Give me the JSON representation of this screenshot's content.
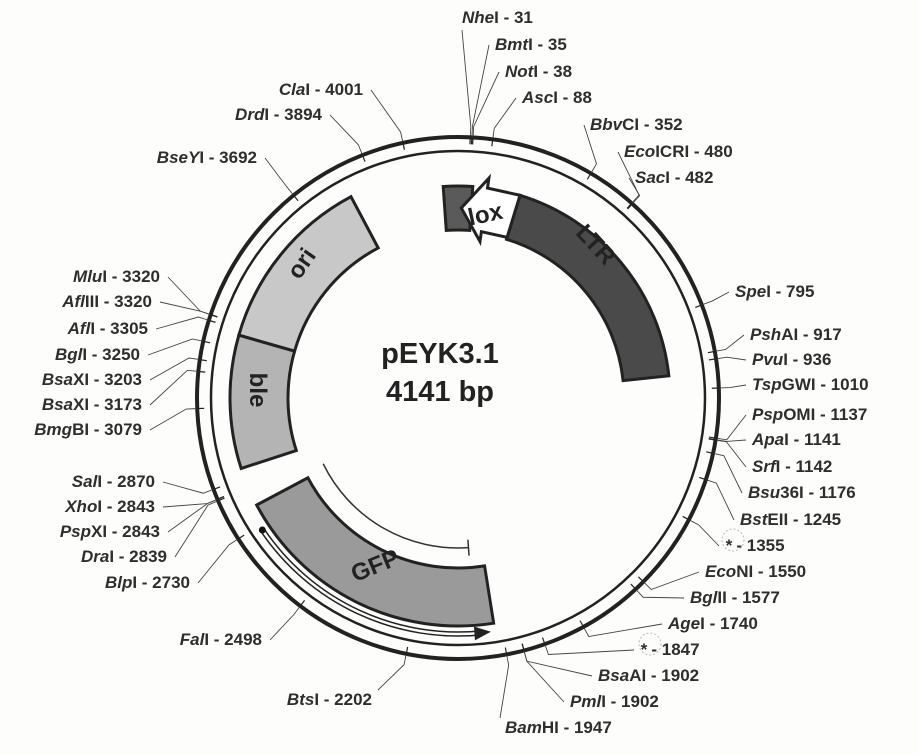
{
  "plasmid": {
    "name": "pEYK3.1",
    "size": "4141 bp"
  },
  "features": [
    {
      "label": "lox",
      "color": "#5a5a5a"
    },
    {
      "label": "LTR",
      "color": "#4a4a4a"
    },
    {
      "label": "ori",
      "color": "#c8c8c8"
    },
    {
      "label": "ble",
      "color": "#b4b4b4"
    },
    {
      "label": "GFP",
      "color": "#9a9a9a"
    }
  ],
  "sites": [
    {
      "prefix": "Nhe",
      "suffix": "I",
      "pos": "31"
    },
    {
      "prefix": "Bmt",
      "suffix": "I",
      "pos": "35"
    },
    {
      "prefix": "Not",
      "suffix": "I",
      "pos": "38"
    },
    {
      "prefix": "Asc",
      "suffix": "I",
      "pos": "88"
    },
    {
      "prefix": "Bbv",
      "suffix": "CI",
      "pos": "352"
    },
    {
      "prefix": "Eco",
      "suffix": "ICRI",
      "pos": "480"
    },
    {
      "prefix": "Sac",
      "suffix": "I",
      "pos": "482"
    },
    {
      "prefix": "Spe",
      "suffix": "I",
      "pos": "795"
    },
    {
      "prefix": "Psh",
      "suffix": "AI",
      "pos": "917"
    },
    {
      "prefix": "Pvu",
      "suffix": "I",
      "pos": "936"
    },
    {
      "prefix": "Tsp",
      "suffix": "GWI",
      "pos": "1010"
    },
    {
      "prefix": "Psp",
      "suffix": "OMI",
      "pos": "1137"
    },
    {
      "prefix": "Apa",
      "suffix": "I",
      "pos": "1141"
    },
    {
      "prefix": "Srf",
      "suffix": "I",
      "pos": "1142"
    },
    {
      "prefix": "Bsu",
      "suffix": "36I",
      "pos": "1176"
    },
    {
      "prefix": "Bst",
      "suffix": "EII",
      "pos": "1245"
    },
    {
      "prefix": "*",
      "suffix": "",
      "pos": "1355"
    },
    {
      "prefix": "Eco",
      "suffix": "NI",
      "pos": "1550"
    },
    {
      "prefix": "Bgl",
      "suffix": "II",
      "pos": "1577"
    },
    {
      "prefix": "Age",
      "suffix": "I",
      "pos": "1740"
    },
    {
      "prefix": "*",
      "suffix": "",
      "pos": "1847"
    },
    {
      "prefix": "Bsa",
      "suffix": "AI",
      "pos": "1902"
    },
    {
      "prefix": "Pml",
      "suffix": "I",
      "pos": "1902"
    },
    {
      "prefix": "Bam",
      "suffix": "HI",
      "pos": "1947"
    },
    {
      "prefix": "Bts",
      "suffix": "I",
      "pos": "2202"
    },
    {
      "prefix": "Fal",
      "suffix": "I",
      "pos": "2498"
    },
    {
      "prefix": "Blp",
      "suffix": "I",
      "pos": "2730"
    },
    {
      "prefix": "Dra",
      "suffix": "I",
      "pos": "2839"
    },
    {
      "prefix": "Psp",
      "suffix": "XI",
      "pos": "2843"
    },
    {
      "prefix": "Xho",
      "suffix": "I",
      "pos": "2843"
    },
    {
      "prefix": "Sal",
      "suffix": "I",
      "pos": "2870"
    },
    {
      "prefix": "Bmg",
      "suffix": "BI",
      "pos": "3079"
    },
    {
      "prefix": "Bsa",
      "suffix": "XI",
      "pos": "3173"
    },
    {
      "prefix": "Bsa",
      "suffix": "XI",
      "pos": "3203"
    },
    {
      "prefix": "Bgl",
      "suffix": "I",
      "pos": "3250"
    },
    {
      "prefix": "Afl",
      "suffix": "I",
      "pos": "3305"
    },
    {
      "prefix": "Afl",
      "suffix": "III",
      "pos": "3320"
    },
    {
      "prefix": "Mlu",
      "suffix": "I",
      "pos": "3320"
    },
    {
      "prefix": "BseY",
      "suffix": "I",
      "pos": "3692"
    },
    {
      "prefix": "Drd",
      "suffix": "I",
      "pos": "3894"
    },
    {
      "prefix": "Cla",
      "suffix": "I",
      "pos": "4001"
    }
  ]
}
